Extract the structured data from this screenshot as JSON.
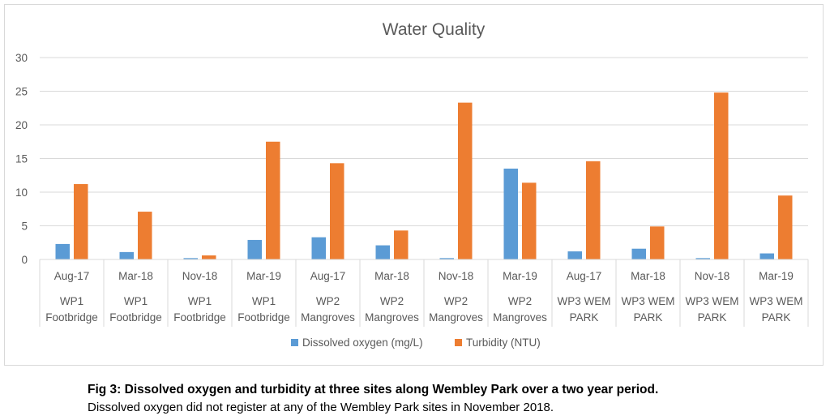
{
  "caption": {
    "title": "Fig 3: Dissolved oxygen and turbidity at three sites along Wembley Park over a two year period.",
    "body": "Dissolved oxygen did not register at any of the Wembley Park sites in November 2018."
  },
  "colors": {
    "series1": "#5b9bd5",
    "series2": "#ed7d31",
    "grid": "#d9d9d9",
    "text": "#595959"
  },
  "chart_data": {
    "type": "bar",
    "title": "Water Quality",
    "ylim": [
      0,
      30
    ],
    "yticks": [
      0,
      5,
      10,
      15,
      20,
      25,
      30
    ],
    "grid": true,
    "legend": "bottom",
    "categories": [
      {
        "date": "Aug-17",
        "site": [
          "WP1",
          "Footbridge"
        ]
      },
      {
        "date": "Mar-18",
        "site": [
          "WP1",
          "Footbridge"
        ]
      },
      {
        "date": "Nov-18",
        "site": [
          "WP1",
          "Footbridge"
        ]
      },
      {
        "date": "Mar-19",
        "site": [
          "WP1",
          "Footbridge"
        ]
      },
      {
        "date": "Aug-17",
        "site": [
          "WP2",
          "Mangroves"
        ]
      },
      {
        "date": "Mar-18",
        "site": [
          "WP2",
          "Mangroves"
        ]
      },
      {
        "date": "Nov-18",
        "site": [
          "WP2",
          "Mangroves"
        ]
      },
      {
        "date": "Mar-19",
        "site": [
          "WP2",
          "Mangroves"
        ]
      },
      {
        "date": "Aug-17",
        "site": [
          "WP3 WEM",
          "PARK"
        ]
      },
      {
        "date": "Mar-18",
        "site": [
          "WP3 WEM",
          "PARK"
        ]
      },
      {
        "date": "Nov-18",
        "site": [
          "WP3 WEM",
          "PARK"
        ]
      },
      {
        "date": "Mar-19",
        "site": [
          "WP3 WEM",
          "PARK"
        ]
      }
    ],
    "series": [
      {
        "name": "Dissolved oxygen (mg/L)",
        "values": [
          2.3,
          1.1,
          0.2,
          2.9,
          3.3,
          2.1,
          0.2,
          13.5,
          1.2,
          1.6,
          0.2,
          0.9
        ]
      },
      {
        "name": "Turbidity (NTU)",
        "values": [
          11.2,
          7.1,
          0.6,
          17.5,
          14.3,
          4.3,
          23.3,
          11.4,
          14.6,
          4.9,
          24.8,
          9.5
        ]
      }
    ]
  }
}
